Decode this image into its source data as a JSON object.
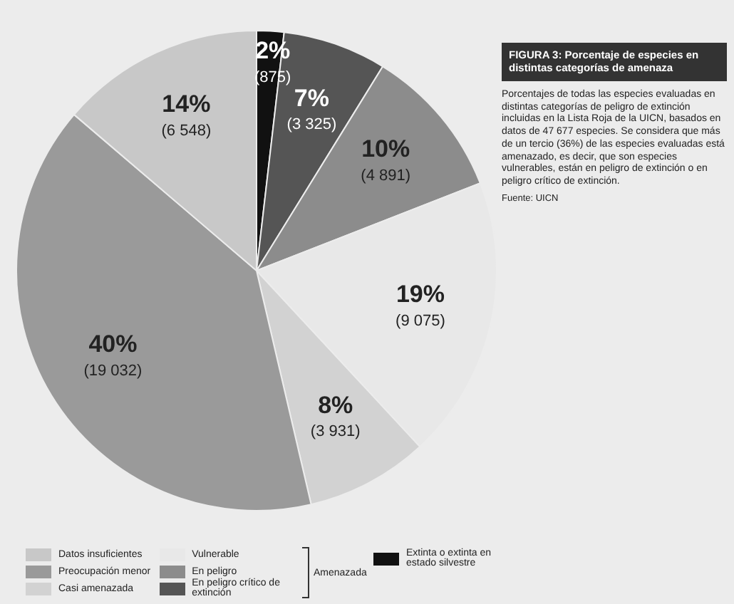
{
  "chart_data": {
    "type": "pie",
    "title": "FIGURA 3: Porcentaje de especies en distintas categorías de amenaza",
    "subtitle": "Porcentajes de todas las especies evaluadas en distintas categorías de peligro de extinción incluidas en la Lista Roja de la UICN, basados en datos de 47 677 especies. Se considera que más de un tercio (36%) de las especies evaluadas está amenazado, es decir, que son especies vulnerables, están en peligro de extinción o en peligro crítico de extinción.",
    "annotations": [
      "Amenazada",
      "Fuente: UICN"
    ],
    "categories": [
      "Extinta o extinta en estado silvestre",
      "En peligro crítico de extinción",
      "En peligro",
      "Vulnerable",
      "Casi amenazada",
      "Preocupación menor",
      "Datos insuficientes"
    ],
    "values": [
      875,
      3325,
      4891,
      9075,
      3931,
      19032,
      6548
    ],
    "value_labels": [
      "2%\n(875)",
      "7%\n(3 325)",
      "10%\n(4 891)",
      "19%\n(9 075)",
      "8%\n(3 931)",
      "40%\n(19 032)",
      "14%\n(6 548)"
    ],
    "colors": [
      "#111111",
      "#555555",
      "#8c8c8c",
      "#e8e8e8",
      "#d2d2d2",
      "#9a9a9a",
      "#c8c8c8"
    ],
    "legend": "bottom"
  }
}
